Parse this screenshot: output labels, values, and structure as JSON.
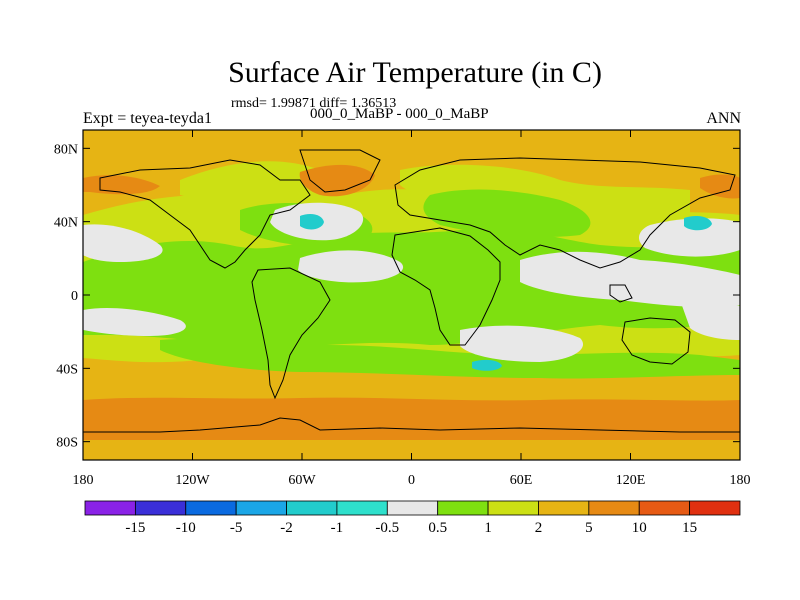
{
  "header": {
    "title": "Surface Air Temperature (in C)",
    "stats": "rmsd= 1.99871 diff= 1.36513",
    "subtitle": "000_0_MaBP - 000_0_MaBP",
    "left_label": "Expt = teyea-teyda1",
    "right_label": "ANN"
  },
  "map": {
    "lon_range": [
      -180,
      180
    ],
    "lat_range": [
      -90,
      90
    ],
    "lon_ticks": [
      {
        "value": -180,
        "label": "180"
      },
      {
        "value": -120,
        "label": "120W"
      },
      {
        "value": -60,
        "label": "60W"
      },
      {
        "value": 0,
        "label": "0"
      },
      {
        "value": 60,
        "label": "60E"
      },
      {
        "value": 120,
        "label": "120E"
      },
      {
        "value": 180,
        "label": "180"
      }
    ],
    "lat_ticks": [
      {
        "value": 80,
        "label": "80N"
      },
      {
        "value": 40,
        "label": "40N"
      },
      {
        "value": 0,
        "label": "0"
      },
      {
        "value": -40,
        "label": "40S"
      },
      {
        "value": -80,
        "label": "80S"
      }
    ]
  },
  "colorbar": {
    "boundaries": [
      "-15",
      "-10",
      "-5",
      "-2",
      "-1",
      "-0.5",
      "0.5",
      "1",
      "2",
      "5",
      "10",
      "15"
    ],
    "colors": [
      "#8a22e6",
      "#3a2fd8",
      "#0a6ae0",
      "#1ba6e6",
      "#22cccc",
      "#2ee0cc",
      "#e8e8e8",
      "#7ee010",
      "#cce014",
      "#e6b414",
      "#e68a14",
      "#e65a14",
      "#e03010"
    ]
  }
}
